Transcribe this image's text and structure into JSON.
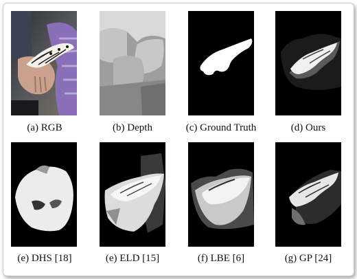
{
  "figure": {
    "panels": [
      {
        "id": "rgb",
        "caption": "(a) RGB"
      },
      {
        "id": "depth",
        "caption": "(b) Depth"
      },
      {
        "id": "gt",
        "caption": "(c) Ground Truth"
      },
      {
        "id": "ours",
        "caption": "(d) Ours"
      },
      {
        "id": "dhs",
        "caption": "(e) DHS [18]"
      },
      {
        "id": "eld",
        "caption": "(e) ELD [15]"
      },
      {
        "id": "lbe",
        "caption": "(f) LBE [6]"
      },
      {
        "id": "gp",
        "caption": "(g) GP [24]"
      }
    ]
  }
}
